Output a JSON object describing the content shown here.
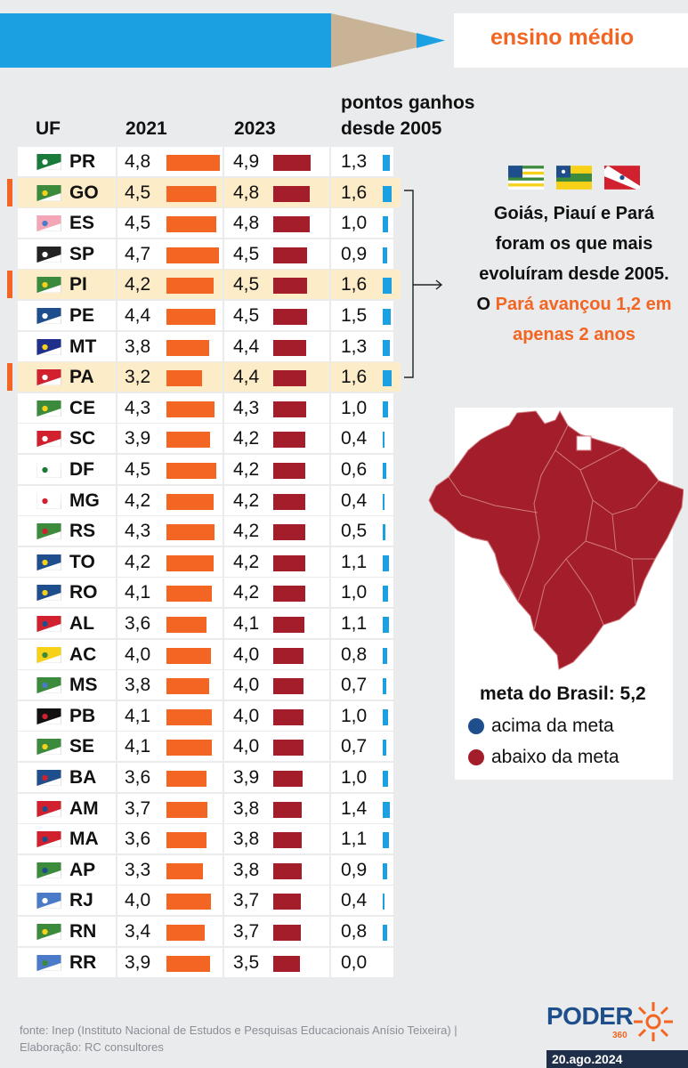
{
  "banner": {
    "title": "ensino médio"
  },
  "headers": {
    "uf": "UF",
    "y2021": "2021",
    "y2023": "2023",
    "points_l1": "pontos ganhos",
    "points_l2": "desde 2005"
  },
  "colors": {
    "bar_2021": "#f26522",
    "bar_2023": "#a31d2a",
    "bar_points": "#1ba1e2",
    "highlight": "#fdecc8",
    "accent": "#f26522",
    "above": "#1f4e8c",
    "below": "#a31d2a"
  },
  "chart_data": {
    "type": "table",
    "columns": [
      "UF",
      "2021",
      "2023",
      "pontos ganhos desde 2005"
    ],
    "highlighted": [
      "GO",
      "PI",
      "PA"
    ],
    "rows": [
      {
        "uf": "PR",
        "v2021": "4,8",
        "v2023": "4,9",
        "gain": "1,3"
      },
      {
        "uf": "GO",
        "v2021": "4,5",
        "v2023": "4,8",
        "gain": "1,6"
      },
      {
        "uf": "ES",
        "v2021": "4,5",
        "v2023": "4,8",
        "gain": "1,0"
      },
      {
        "uf": "SP",
        "v2021": "4,7",
        "v2023": "4,5",
        "gain": "0,9"
      },
      {
        "uf": "PI",
        "v2021": "4,2",
        "v2023": "4,5",
        "gain": "1,6"
      },
      {
        "uf": "PE",
        "v2021": "4,4",
        "v2023": "4,5",
        "gain": "1,5"
      },
      {
        "uf": "MT",
        "v2021": "3,8",
        "v2023": "4,4",
        "gain": "1,3"
      },
      {
        "uf": "PA",
        "v2021": "3,2",
        "v2023": "4,4",
        "gain": "1,6"
      },
      {
        "uf": "CE",
        "v2021": "4,3",
        "v2023": "4,3",
        "gain": "1,0"
      },
      {
        "uf": "SC",
        "v2021": "3,9",
        "v2023": "4,2",
        "gain": "0,4"
      },
      {
        "uf": "DF",
        "v2021": "4,5",
        "v2023": "4,2",
        "gain": "0,6"
      },
      {
        "uf": "MG",
        "v2021": "4,2",
        "v2023": "4,2",
        "gain": "0,4"
      },
      {
        "uf": "RS",
        "v2021": "4,3",
        "v2023": "4,2",
        "gain": "0,5"
      },
      {
        "uf": "TO",
        "v2021": "4,2",
        "v2023": "4,2",
        "gain": "1,1"
      },
      {
        "uf": "RO",
        "v2021": "4,1",
        "v2023": "4,2",
        "gain": "1,0"
      },
      {
        "uf": "AL",
        "v2021": "3,6",
        "v2023": "4,1",
        "gain": "1,1"
      },
      {
        "uf": "AC",
        "v2021": "4,0",
        "v2023": "4,0",
        "gain": "0,8"
      },
      {
        "uf": "MS",
        "v2021": "3,8",
        "v2023": "4,0",
        "gain": "0,7"
      },
      {
        "uf": "PB",
        "v2021": "4,1",
        "v2023": "4,0",
        "gain": "1,0"
      },
      {
        "uf": "SE",
        "v2021": "4,1",
        "v2023": "4,0",
        "gain": "0,7"
      },
      {
        "uf": "BA",
        "v2021": "3,6",
        "v2023": "3,9",
        "gain": "1,0"
      },
      {
        "uf": "AM",
        "v2021": "3,7",
        "v2023": "3,8",
        "gain": "1,4"
      },
      {
        "uf": "MA",
        "v2021": "3,6",
        "v2023": "3,8",
        "gain": "1,1"
      },
      {
        "uf": "AP",
        "v2021": "3,3",
        "v2023": "3,8",
        "gain": "0,9"
      },
      {
        "uf": "RJ",
        "v2021": "4,0",
        "v2023": "3,7",
        "gain": "0,4"
      },
      {
        "uf": "RN",
        "v2021": "3,4",
        "v2023": "3,7",
        "gain": "0,8"
      },
      {
        "uf": "RR",
        "v2021": "3,9",
        "v2023": "3,5",
        "gain": "0,0"
      }
    ]
  },
  "info": {
    "line1": "Goiás, Piauí e Pará",
    "line2": "foram os que mais",
    "line3": "evoluíram desde 2005.",
    "line4_pre": "O ",
    "line4_hi": "Pará avançou 1,2 em",
    "line5_hi": "apenas 2 anos"
  },
  "map": {
    "goal": "meta do Brasil: 5,2",
    "legend": [
      {
        "label": "acima da meta",
        "color": "#1f4e8c"
      },
      {
        "label": "abaixo da meta",
        "color": "#a31d2a"
      }
    ]
  },
  "footer": {
    "line1": "fonte: Inep (Instituto Nacional de Estudos e Pesquisas Educacionais Anísio Teixeira) |",
    "line2": "Elaboração: RC consultores"
  },
  "logo": {
    "word": "PODER",
    "num": "360"
  },
  "date": "20.ago.2024"
}
